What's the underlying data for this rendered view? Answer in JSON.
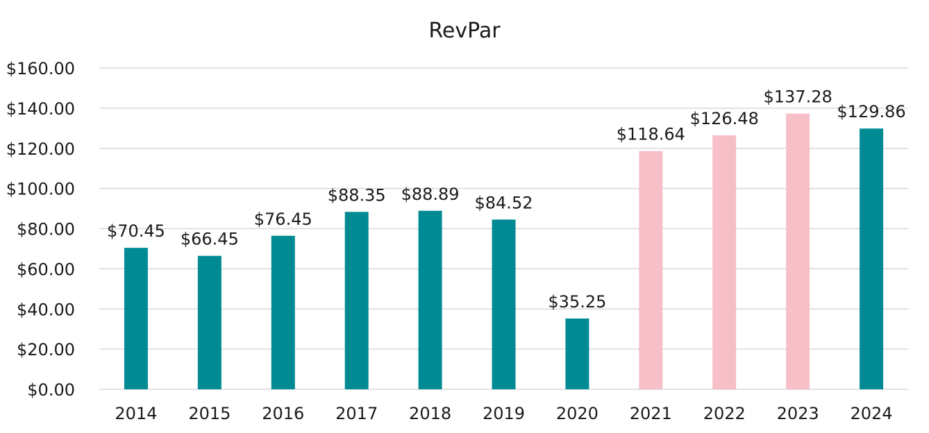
{
  "chart_data": {
    "type": "bar",
    "title": "RevPar",
    "xlabel": "",
    "ylabel": "",
    "categories": [
      "2014",
      "2015",
      "2016",
      "2017",
      "2018",
      "2019",
      "2020",
      "2021",
      "2022",
      "2023",
      "2024"
    ],
    "values": [
      70.45,
      66.45,
      76.45,
      88.35,
      88.89,
      84.52,
      35.25,
      118.64,
      126.48,
      137.28,
      129.86
    ],
    "data_labels": [
      "$70.45",
      "$66.45",
      "$76.45",
      "$88.35",
      "$88.89",
      "$84.52",
      "$35.25",
      "$118.64",
      "$126.48",
      "$137.28",
      "$129.86"
    ],
    "bar_colors": [
      "#008b94",
      "#008b94",
      "#008b94",
      "#008b94",
      "#008b94",
      "#008b94",
      "#008b94",
      "#f7bfc7",
      "#f7bfc7",
      "#f7bfc7",
      "#008b94"
    ],
    "ylim": [
      0,
      160
    ],
    "y_ticks": [
      0,
      20,
      40,
      60,
      80,
      100,
      120,
      140,
      160
    ],
    "y_tick_labels": [
      "$0.00",
      "$20.00",
      "$40.00",
      "$60.00",
      "$80.00",
      "$100.00",
      "$120.00",
      "$140.00",
      "$160.00"
    ],
    "grid": true,
    "legend": "none"
  }
}
